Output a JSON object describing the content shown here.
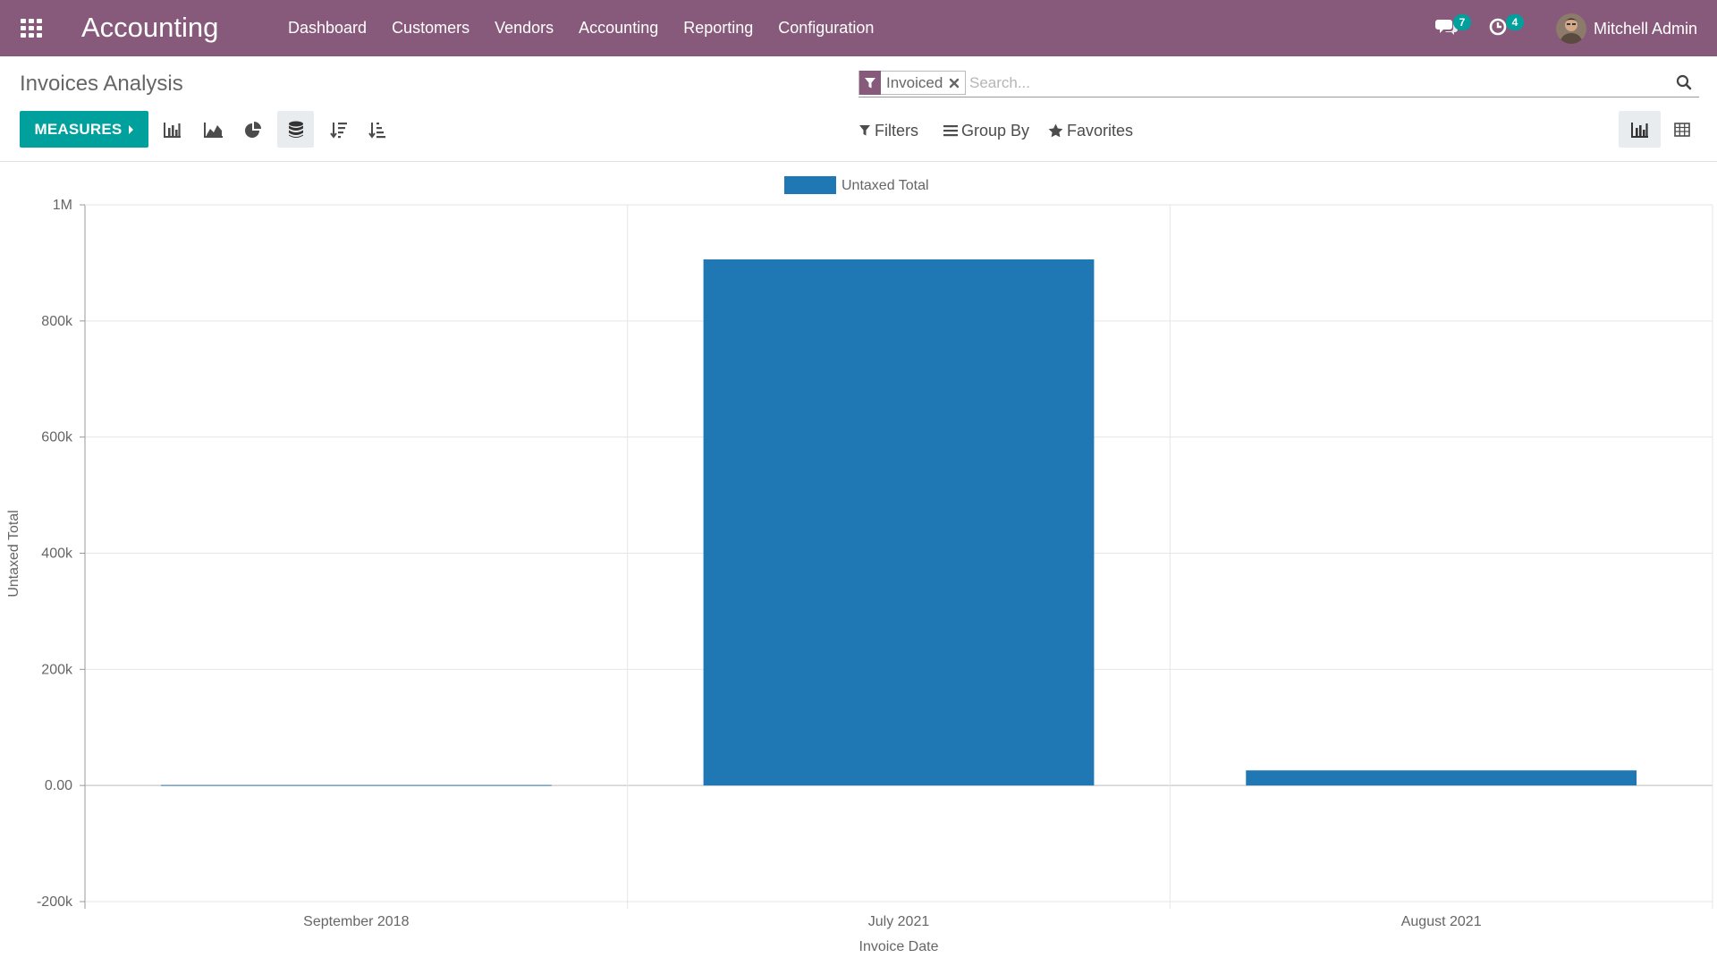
{
  "navbar": {
    "brand": "Accounting",
    "menu": [
      "Dashboard",
      "Customers",
      "Vendors",
      "Accounting",
      "Reporting",
      "Configuration"
    ],
    "messages_count": "7",
    "activities_count": "4",
    "user_name": "Mitchell Admin",
    "background_color": "#875a7b",
    "icons": {
      "apps": "apps-grid-icon",
      "messages": "chat-bubbles-icon",
      "activities": "clock-icon"
    }
  },
  "control_panel": {
    "breadcrumb": "Invoices Analysis",
    "search": {
      "facet_value": "Invoiced",
      "placeholder": "Search..."
    },
    "measures_label": "MEASURES",
    "filters_label": "Filters",
    "groupby_label": "Group By",
    "favorites_label": "Favorites",
    "accent_color": "#00a09d",
    "tools": [
      {
        "name": "bar-chart-mode",
        "icon": "bar-chart-icon",
        "active": false
      },
      {
        "name": "line-chart-mode",
        "icon": "area-chart-icon",
        "active": false
      },
      {
        "name": "pie-chart-mode",
        "icon": "pie-chart-icon",
        "active": false
      },
      {
        "name": "stacked-toggle",
        "icon": "database-icon",
        "active": true
      },
      {
        "name": "sort-descending",
        "icon": "sort-amount-desc-icon",
        "active": false
      },
      {
        "name": "sort-ascending",
        "icon": "sort-amount-asc-icon",
        "active": false
      }
    ],
    "view_switcher": [
      {
        "name": "graph-view",
        "icon": "bar-chart-icon",
        "active": true
      },
      {
        "name": "pivot-view",
        "icon": "table-icon",
        "active": false
      }
    ]
  },
  "chart_data": {
    "type": "bar",
    "categories": [
      "September 2018",
      "July 2021",
      "August 2021"
    ],
    "series": [
      {
        "name": "Untaxed Total",
        "values": [
          -1000,
          906000,
          26000
        ],
        "color": "#1f77b4"
      }
    ],
    "xlabel": "Invoice Date",
    "ylabel": "Untaxed Total",
    "ylim": [
      -200000,
      1000000
    ],
    "y_ticks": [
      -200000,
      0,
      200000,
      400000,
      600000,
      800000,
      1000000
    ],
    "y_tick_labels": [
      "-200k",
      "0.00",
      "200k",
      "400k",
      "600k",
      "800k",
      "1M"
    ],
    "grid": true,
    "legend_position": "top-center"
  }
}
